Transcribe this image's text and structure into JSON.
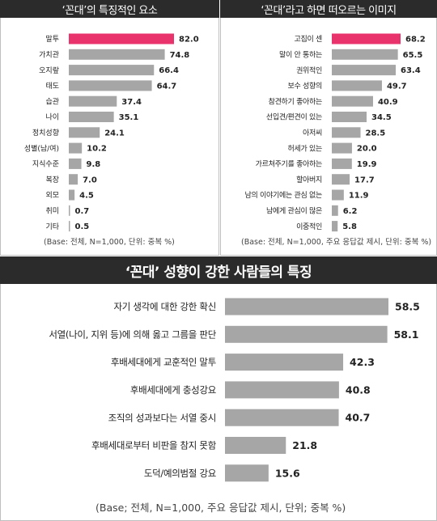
{
  "charts": {
    "traits": {
      "header": "‘꼰대’의 특징적인 요소",
      "base_note": "(Base: 전체, N=1,000, 단위: 중복 %)",
      "chart_data": {
        "type": "bar",
        "orientation": "horizontal",
        "title": "‘꼰대’의 특징적인 요소",
        "categories": [
          "말투",
          "가치관",
          "오지랖",
          "태도",
          "습관",
          "나이",
          "정치성향",
          "성별(남/여)",
          "지식수준",
          "복장",
          "외모",
          "취미",
          "기타"
        ],
        "values": [
          82.0,
          74.8,
          66.4,
          64.7,
          37.4,
          35.1,
          24.1,
          10.2,
          9.8,
          7.0,
          4.5,
          0.7,
          0.5
        ],
        "value_labels": [
          "82.0",
          "74.8",
          "66.4",
          "64.7",
          "37.4",
          "35.1",
          "24.1",
          "10.2",
          "9.8",
          "7.0",
          "4.5",
          "0.7",
          "0.5"
        ],
        "highlight_index": 0,
        "xlim": [
          0,
          82
        ],
        "grid": false,
        "colors": {
          "highlight": "#e8336d",
          "bar": "#a6a6a6"
        }
      }
    },
    "image": {
      "header": "‘꼰대’라고 하면 떠오르는 이미지",
      "base_note": "(Base: 전체, N=1,000, 주요 응답값 제시, 단위: 중복 %)",
      "chart_data": {
        "type": "bar",
        "orientation": "horizontal",
        "title": "‘꼰대’라고 하면 떠오르는 이미지",
        "categories": [
          "고집이 센",
          "말이 안 통하는",
          "권위적인",
          "보수 성향의",
          "참견하기 좋아하는",
          "선입견/편견이 있는",
          "아저씨",
          "허세가 있는",
          "가르쳐주기를 좋아하는",
          "할아버지",
          "남의 이야기에는 관심 없는",
          "남에게 관심이 많은",
          "이중적인"
        ],
        "values": [
          68.2,
          65.5,
          63.4,
          49.7,
          40.9,
          34.5,
          28.5,
          20.0,
          19.9,
          17.7,
          11.9,
          6.2,
          5.8
        ],
        "value_labels": [
          "68.2",
          "65.5",
          "63.4",
          "49.7",
          "40.9",
          "34.5",
          "28.5",
          "20.0",
          "19.9",
          "17.7",
          "11.9",
          "6.2",
          "5.8"
        ],
        "highlight_index": 0,
        "xlim": [
          0,
          68.2
        ],
        "grid": false,
        "colors": {
          "highlight": "#e8336d",
          "bar": "#a6a6a6"
        }
      }
    },
    "people": {
      "header": "‘꼰대’ 성향이 강한 사람들의 특징",
      "base_note": "(Base; 전체, N=1,000, 주요 응답값 제시, 단위; 중복 %)",
      "chart_data": {
        "type": "bar",
        "orientation": "horizontal",
        "title": "‘꼰대’ 성향이 강한 사람들의 특징",
        "categories": [
          "자기 생각에 대한 강한 확신",
          "서열(나이, 지위 등)에 의해 옳고 그름을 판단",
          "후배세대에게 교훈적인 말투",
          "후배세대에게 충성강요",
          "조직의 성과보다는 서열 중시",
          "후배세대로부터 비판을 참지 못함",
          "도덕/예의범절 강요"
        ],
        "values": [
          58.5,
          58.1,
          42.3,
          40.8,
          40.7,
          21.8,
          15.6
        ],
        "value_labels": [
          "58.5",
          "58.1",
          "42.3",
          "40.8",
          "40.7",
          "21.8",
          "15.6"
        ],
        "xlim": [
          0,
          58.5
        ],
        "grid": false,
        "colors": {
          "bar": "#a6a6a6"
        }
      }
    }
  }
}
